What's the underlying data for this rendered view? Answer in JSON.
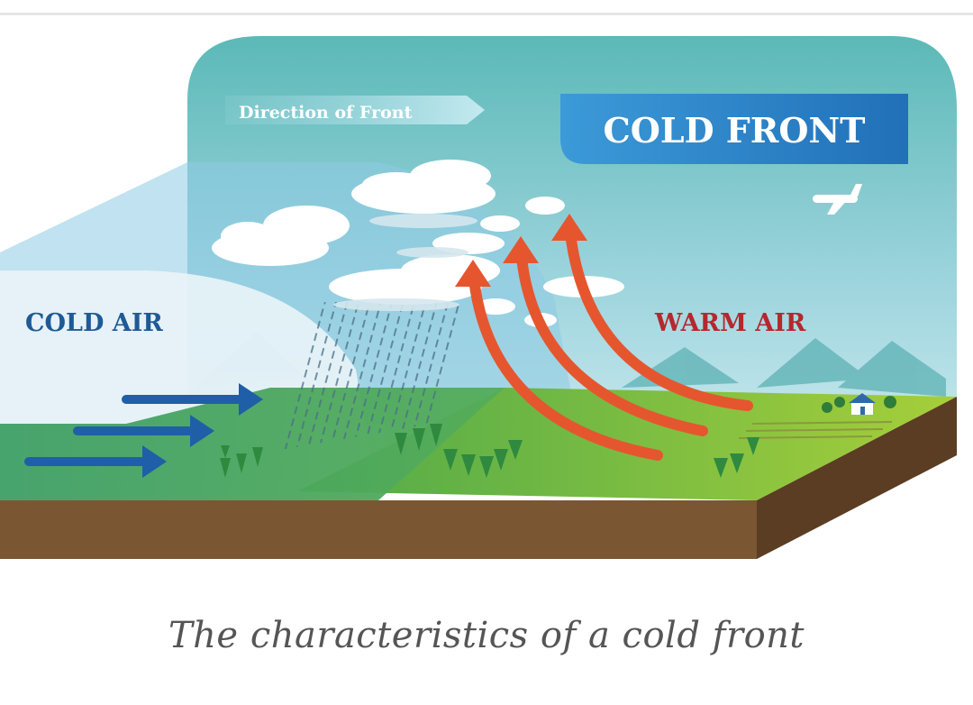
{
  "diagram": {
    "direction_label": "Direction of Front",
    "title": "COLD FRONT",
    "cold_air_label": "COLD AIR",
    "warm_air_label": "WARM AIR"
  },
  "caption": "The characteristics of a cold front",
  "colors": {
    "sky_top": "#5fbcb8",
    "sky_bottom": "#c7e8ee",
    "title_box": "#2f8ad0",
    "cold_text": "#1e5a96",
    "warm_text": "#b6272e",
    "arrow_cold": "#1f5fa8",
    "arrow_warm": "#e5562f",
    "ground_green": "#6fbe45",
    "soil": "#7b5633",
    "soil_dark": "#5a3d22"
  },
  "icons": [
    "airplane-icon",
    "house-icon",
    "tree-icon",
    "cloud-icon",
    "mountain-icon"
  ]
}
